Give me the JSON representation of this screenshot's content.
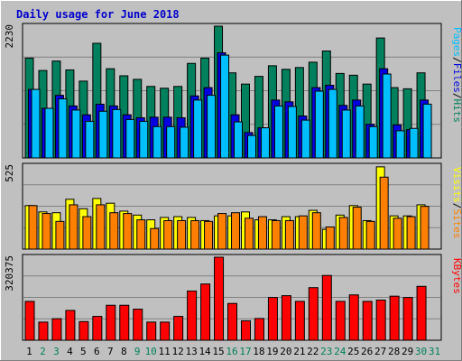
{
  "chart_data": {
    "type": "bar",
    "title": "Daily usage for June 2018",
    "categories": [
      "1",
      "2",
      "3",
      "4",
      "5",
      "6",
      "7",
      "8",
      "9",
      "10",
      "11",
      "12",
      "13",
      "14",
      "15",
      "16",
      "17",
      "18",
      "19",
      "20",
      "21",
      "22",
      "23",
      "24",
      "25",
      "26",
      "27",
      "28",
      "29",
      "30",
      "31"
    ],
    "weekend_days": [
      "2",
      "3",
      "9",
      "10",
      "16",
      "17",
      "23",
      "24",
      "30",
      "31"
    ],
    "panels": [
      {
        "name": "hits-files-pages",
        "ymax": 2230,
        "ymax_label": "2230",
        "series": [
          {
            "name": "Hits",
            "color": "#00805c",
            "values": [
              1690,
              1480,
              1640,
              1490,
              1300,
              1940,
              1510,
              1390,
              1330,
              1210,
              1180,
              1210,
              1600,
              1690,
              2230,
              1440,
              1250,
              1380,
              1560,
              1500,
              1530,
              1620,
              1810,
              1430,
              1400,
              1250,
              2030,
              1190,
              1170,
              1440
            ]
          },
          {
            "name": "Files",
            "color": "#0000e0",
            "values": [
              1160,
              840,
              1060,
              880,
              730,
              910,
              880,
              730,
              680,
              690,
              690,
              680,
              1050,
              1190,
              1780,
              730,
              430,
              510,
              980,
              950,
              710,
              1190,
              1230,
              890,
              980,
              570,
              1510,
              560,
              480,
              980
            ]
          },
          {
            "name": "Pages",
            "color": "#00bfff",
            "values": [
              1160,
              840,
              1000,
              810,
              620,
              790,
              820,
              650,
              620,
              530,
              530,
              520,
              980,
              1060,
              1740,
              610,
              380,
              510,
              880,
              870,
              640,
              1130,
              1160,
              810,
              880,
              530,
              1420,
              460,
              500,
              910
            ]
          }
        ],
        "legend": [
          "Hits",
          "Files",
          "Pages"
        ]
      },
      {
        "name": "visits-sites",
        "ymax": 525,
        "ymax_label": "525",
        "series": [
          {
            "name": "Visits",
            "color": "#ffff00",
            "values": [
              275,
              235,
              230,
              315,
              255,
              320,
              290,
              240,
              215,
              185,
              200,
              205,
              200,
              180,
              210,
              210,
              235,
              185,
              185,
              205,
              205,
              245,
              125,
              215,
              275,
              180,
              520,
              210,
              210,
              280
            ]
          },
          {
            "name": "Sites",
            "color": "#ff8000",
            "values": [
              275,
              225,
              175,
              280,
              205,
              280,
              230,
              225,
              185,
              130,
              180,
              180,
              180,
              175,
              225,
              230,
              195,
              205,
              180,
              180,
              210,
              230,
              140,
              200,
              265,
              175,
              455,
              195,
              205,
              270
            ]
          }
        ],
        "legend": [
          "Sites",
          "Visits"
        ]
      },
      {
        "name": "kbytes",
        "ymax": 320375,
        "ymax_label": "320375",
        "series": [
          {
            "name": "KBytes",
            "color": "#ff0000",
            "values": [
              150000,
              70000,
              83000,
              115000,
              72000,
              92000,
              135000,
              135000,
              120000,
              70000,
              70000,
              92000,
              190000,
              217000,
              320375,
              142000,
              75000,
              84000,
              165000,
              172000,
              150000,
              203000,
              250000,
              150000,
              175000,
              150000,
              155000,
              170000,
              165000,
              208000
            ]
          }
        ],
        "legend": [
          "KBytes"
        ]
      }
    ],
    "colors": {
      "background": "#c0c0c0",
      "plot_bg": "#c0c0c0",
      "grid": "#808080",
      "weekday_label": "#000000",
      "weekend_label": "#00805c",
      "title": "#0000cc"
    }
  }
}
